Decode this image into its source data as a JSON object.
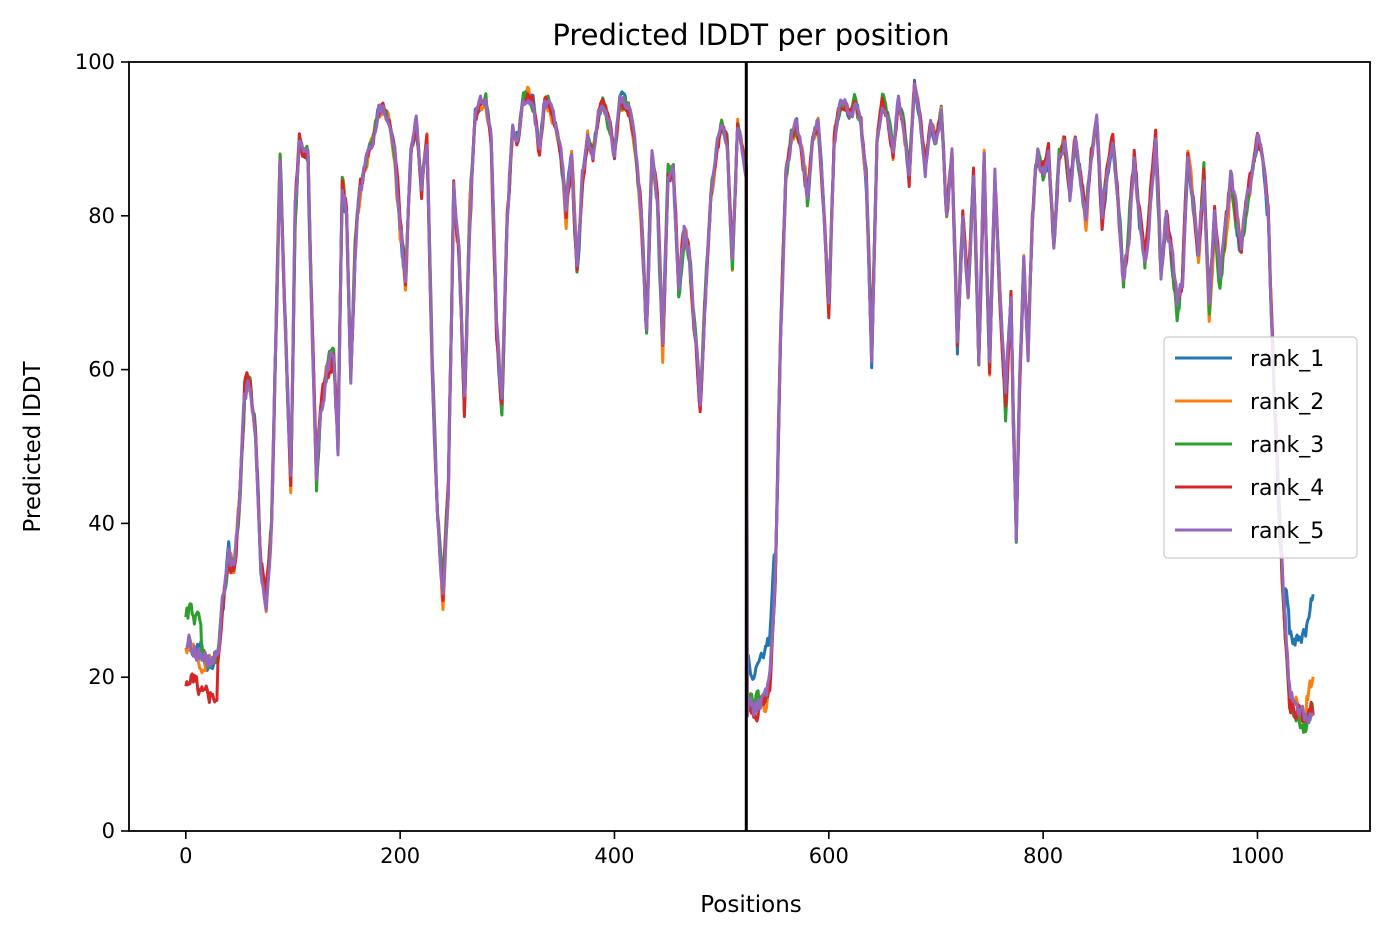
{
  "chart_data": {
    "type": "line",
    "title": "Predicted lDDT per position",
    "xlabel": "Positions",
    "ylabel": "Predicted lDDT",
    "xlim": [
      -53,
      1105
    ],
    "ylim": [
      0,
      100
    ],
    "xticks": [
      0,
      200,
      400,
      600,
      800,
      1000
    ],
    "yticks": [
      0,
      20,
      40,
      60,
      80,
      100
    ],
    "grid": false,
    "legend_position": "center-right",
    "divider_x": 523,
    "x_end": 1052,
    "series": [
      {
        "name": "rank_1",
        "color": "#1f77b4"
      },
      {
        "name": "rank_2",
        "color": "#ff7f0e"
      },
      {
        "name": "rank_3",
        "color": "#2ca02c"
      },
      {
        "name": "rank_4",
        "color": "#d62728"
      },
      {
        "name": "rank_5",
        "color": "#9467bd"
      }
    ],
    "profile": [
      [
        0,
        25
      ],
      [
        10,
        24
      ],
      [
        20,
        22
      ],
      [
        30,
        23
      ],
      [
        35,
        30
      ],
      [
        40,
        36
      ],
      [
        45,
        33
      ],
      [
        50,
        42
      ],
      [
        55,
        57
      ],
      [
        60,
        58
      ],
      [
        65,
        52
      ],
      [
        70,
        35
      ],
      [
        75,
        30
      ],
      [
        80,
        40
      ],
      [
        85,
        70
      ],
      [
        88,
        88
      ],
      [
        92,
        70
      ],
      [
        98,
        45
      ],
      [
        102,
        80
      ],
      [
        106,
        90
      ],
      [
        110,
        88
      ],
      [
        114,
        88
      ],
      [
        118,
        65
      ],
      [
        122,
        45
      ],
      [
        126,
        55
      ],
      [
        132,
        60
      ],
      [
        138,
        62
      ],
      [
        142,
        50
      ],
      [
        146,
        85
      ],
      [
        150,
        80
      ],
      [
        154,
        58
      ],
      [
        158,
        75
      ],
      [
        162,
        82
      ],
      [
        166,
        86
      ],
      [
        170,
        88
      ],
      [
        175,
        90
      ],
      [
        180,
        94
      ],
      [
        185,
        94
      ],
      [
        190,
        92
      ],
      [
        195,
        88
      ],
      [
        200,
        78
      ],
      [
        205,
        72
      ],
      [
        210,
        88
      ],
      [
        215,
        92
      ],
      [
        220,
        84
      ],
      [
        225,
        90
      ],
      [
        230,
        60
      ],
      [
        235,
        40
      ],
      [
        240,
        30
      ],
      [
        245,
        45
      ],
      [
        250,
        83
      ],
      [
        255,
        75
      ],
      [
        260,
        55
      ],
      [
        265,
        80
      ],
      [
        270,
        93
      ],
      [
        275,
        95
      ],
      [
        280,
        95
      ],
      [
        285,
        90
      ],
      [
        290,
        65
      ],
      [
        295,
        55
      ],
      [
        300,
        80
      ],
      [
        305,
        92
      ],
      [
        310,
        90
      ],
      [
        315,
        95
      ],
      [
        320,
        96
      ],
      [
        325,
        94
      ],
      [
        330,
        88
      ],
      [
        335,
        95
      ],
      [
        340,
        94
      ],
      [
        345,
        92
      ],
      [
        350,
        88
      ],
      [
        355,
        80
      ],
      [
        360,
        88
      ],
      [
        365,
        72
      ],
      [
        370,
        85
      ],
      [
        375,
        90
      ],
      [
        380,
        88
      ],
      [
        385,
        93
      ],
      [
        390,
        95
      ],
      [
        395,
        92
      ],
      [
        400,
        88
      ],
      [
        405,
        95
      ],
      [
        410,
        95
      ],
      [
        415,
        93
      ],
      [
        420,
        88
      ],
      [
        425,
        80
      ],
      [
        430,
        65
      ],
      [
        435,
        88
      ],
      [
        440,
        82
      ],
      [
        445,
        62
      ],
      [
        450,
        85
      ],
      [
        455,
        86
      ],
      [
        460,
        70
      ],
      [
        465,
        78
      ],
      [
        470,
        75
      ],
      [
        475,
        65
      ],
      [
        480,
        55
      ],
      [
        485,
        70
      ],
      [
        490,
        82
      ],
      [
        495,
        88
      ],
      [
        500,
        92
      ],
      [
        505,
        90
      ],
      [
        510,
        74
      ],
      [
        515,
        92
      ],
      [
        520,
        88
      ],
      [
        523,
        86
      ],
      [
        524,
        17
      ],
      [
        530,
        16
      ],
      [
        540,
        17
      ],
      [
        545,
        20
      ],
      [
        550,
        32
      ],
      [
        555,
        65
      ],
      [
        560,
        85
      ],
      [
        565,
        90
      ],
      [
        570,
        92
      ],
      [
        575,
        88
      ],
      [
        580,
        82
      ],
      [
        585,
        90
      ],
      [
        590,
        92
      ],
      [
        595,
        82
      ],
      [
        600,
        68
      ],
      [
        605,
        90
      ],
      [
        610,
        94
      ],
      [
        615,
        95
      ],
      [
        620,
        93
      ],
      [
        625,
        95
      ],
      [
        630,
        92
      ],
      [
        635,
        85
      ],
      [
        640,
        62
      ],
      [
        645,
        90
      ],
      [
        650,
        95
      ],
      [
        655,
        93
      ],
      [
        660,
        88
      ],
      [
        665,
        95
      ],
      [
        670,
        92
      ],
      [
        675,
        85
      ],
      [
        680,
        97
      ],
      [
        685,
        93
      ],
      [
        690,
        86
      ],
      [
        695,
        92
      ],
      [
        700,
        90
      ],
      [
        705,
        94
      ],
      [
        710,
        80
      ],
      [
        715,
        88
      ],
      [
        720,
        63
      ],
      [
        725,
        80
      ],
      [
        730,
        70
      ],
      [
        735,
        85
      ],
      [
        740,
        62
      ],
      [
        745,
        88
      ],
      [
        750,
        60
      ],
      [
        755,
        85
      ],
      [
        760,
        68
      ],
      [
        765,
        55
      ],
      [
        770,
        70
      ],
      [
        772,
        55
      ],
      [
        775,
        38
      ],
      [
        778,
        58
      ],
      [
        782,
        74
      ],
      [
        786,
        62
      ],
      [
        790,
        80
      ],
      [
        795,
        88
      ],
      [
        800,
        85
      ],
      [
        805,
        88
      ],
      [
        810,
        76
      ],
      [
        815,
        88
      ],
      [
        820,
        90
      ],
      [
        825,
        83
      ],
      [
        830,
        90
      ],
      [
        835,
        85
      ],
      [
        840,
        80
      ],
      [
        845,
        88
      ],
      [
        850,
        92
      ],
      [
        855,
        80
      ],
      [
        860,
        86
      ],
      [
        865,
        90
      ],
      [
        870,
        82
      ],
      [
        875,
        72
      ],
      [
        880,
        78
      ],
      [
        885,
        88
      ],
      [
        890,
        80
      ],
      [
        895,
        74
      ],
      [
        900,
        82
      ],
      [
        905,
        90
      ],
      [
        910,
        72
      ],
      [
        915,
        80
      ],
      [
        920,
        75
      ],
      [
        925,
        68
      ],
      [
        930,
        72
      ],
      [
        935,
        88
      ],
      [
        940,
        82
      ],
      [
        945,
        75
      ],
      [
        950,
        85
      ],
      [
        955,
        68
      ],
      [
        960,
        80
      ],
      [
        965,
        72
      ],
      [
        970,
        78
      ],
      [
        975,
        85
      ],
      [
        980,
        80
      ],
      [
        985,
        75
      ],
      [
        990,
        82
      ],
      [
        995,
        86
      ],
      [
        1000,
        90
      ],
      [
        1005,
        88
      ],
      [
        1010,
        80
      ],
      [
        1015,
        60
      ],
      [
        1020,
        42
      ],
      [
        1025,
        28
      ],
      [
        1030,
        18
      ],
      [
        1035,
        16
      ],
      [
        1040,
        15
      ],
      [
        1045,
        14
      ],
      [
        1050,
        16
      ],
      [
        1052,
        16
      ]
    ]
  }
}
